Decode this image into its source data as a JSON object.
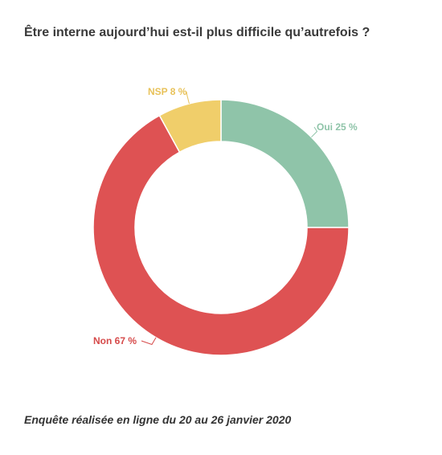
{
  "header": {
    "title": "Être interne aujourd’hui est-il plus difficile qu’autrefois ?"
  },
  "footer": {
    "note": "Enquête réalisée en ligne du 20 au 26 janvier 2020"
  },
  "chart_data": {
    "type": "pie",
    "variant": "donut",
    "title": "Être interne aujourd’hui est-il plus difficile qu’autrefois ?",
    "slices": [
      {
        "label": "Oui",
        "value": 25,
        "display": "Oui 25 %",
        "color": "#8fc4a9",
        "label_color": "#8fc4a9"
      },
      {
        "label": "Non",
        "value": 67,
        "display": "Non 67 %",
        "color": "#de5253",
        "label_color": "#d64a4a"
      },
      {
        "label": "NSP",
        "value": 8,
        "display": "NSP 8 %",
        "color": "#f0ce6a",
        "label_color": "#e8c25a"
      }
    ],
    "legend": "none"
  }
}
